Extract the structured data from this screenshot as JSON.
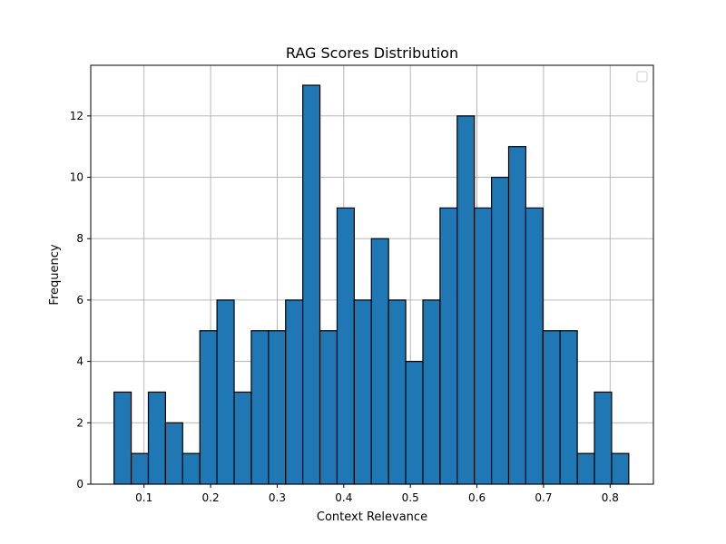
{
  "chart_data": {
    "type": "bar",
    "title": "RAG Scores Distribution",
    "xlabel": "Context Relevance",
    "ylabel": "Frequency",
    "xlim": [
      0.02,
      0.865
    ],
    "ylim": [
      0,
      13.65
    ],
    "xticks": [
      0.1,
      0.2,
      0.3,
      0.4,
      0.5,
      0.6,
      0.7,
      0.8
    ],
    "xtick_labels": [
      "0.1",
      "0.2",
      "0.3",
      "0.4",
      "0.5",
      "0.6",
      "0.7",
      "0.8"
    ],
    "yticks": [
      0,
      2,
      4,
      6,
      8,
      10,
      12
    ],
    "ytick_labels": [
      "0",
      "2",
      "4",
      "6",
      "8",
      "10",
      "12"
    ],
    "bin_start": 0.055,
    "bin_end": 0.828,
    "values": [
      3,
      1,
      3,
      2,
      1,
      5,
      6,
      3,
      5,
      5,
      6,
      13,
      5,
      9,
      6,
      8,
      6,
      4,
      6,
      9,
      12,
      9,
      10,
      11,
      9,
      5,
      5,
      1,
      3,
      1
    ],
    "bar_color": "#1f77b4",
    "edge_color": "#000000",
    "grid": true,
    "legend": "top-right"
  }
}
